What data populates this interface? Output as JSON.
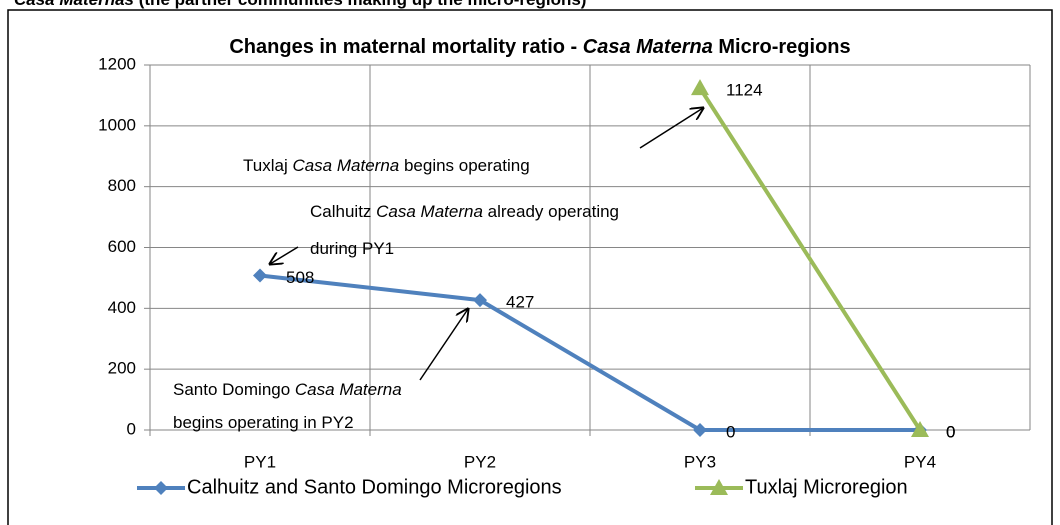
{
  "caption": [
    {
      "text": "Casa Maternas",
      "italic": true
    },
    {
      "text": " (the partner communities making up the micro-regions)",
      "italic": false
    }
  ],
  "chart_data": {
    "type": "line",
    "title": [
      {
        "text": "Changes in maternal mortality ratio - ",
        "italic": false
      },
      {
        "text": "Casa Materna",
        "italic": true
      },
      {
        "text": " Micro-regions",
        "italic": false
      }
    ],
    "categories": [
      "PY1",
      "PY2",
      "PY3",
      "PY4"
    ],
    "series": [
      {
        "name": "Calhuitz and Santo Domingo Microregions",
        "color": "#4f81bd",
        "marker": "diamond",
        "values": [
          508,
          427,
          0,
          0
        ]
      },
      {
        "name": "Tuxlaj Microregion",
        "color": "#9bbb59",
        "marker": "triangle",
        "values": [
          null,
          null,
          1124,
          0
        ]
      }
    ],
    "ylim": [
      0,
      1200
    ],
    "yticks": [
      0,
      200,
      400,
      600,
      800,
      1000,
      1200
    ],
    "grid": true,
    "legend": "bottom",
    "annotations": [
      {
        "lines": [
          [
            {
              "text": "Tuxlaj ",
              "italic": false
            },
            {
              "text": "Casa Materna",
              "italic": true
            },
            {
              "text": " begins operating",
              "italic": false
            }
          ]
        ]
      },
      {
        "lines": [
          [
            {
              "text": "Calhuitz ",
              "italic": false
            },
            {
              "text": "Casa Materna",
              "italic": true
            },
            {
              "text": " already operating",
              "italic": false
            }
          ],
          [
            {
              "text": "during PY1",
              "italic": false
            }
          ]
        ]
      },
      {
        "lines": [
          [
            {
              "text": "Santo Domingo ",
              "italic": false
            },
            {
              "text": "Casa Materna",
              "italic": true
            }
          ],
          [
            {
              "text": "begins operating in PY2",
              "italic": false
            }
          ]
        ]
      }
    ]
  }
}
